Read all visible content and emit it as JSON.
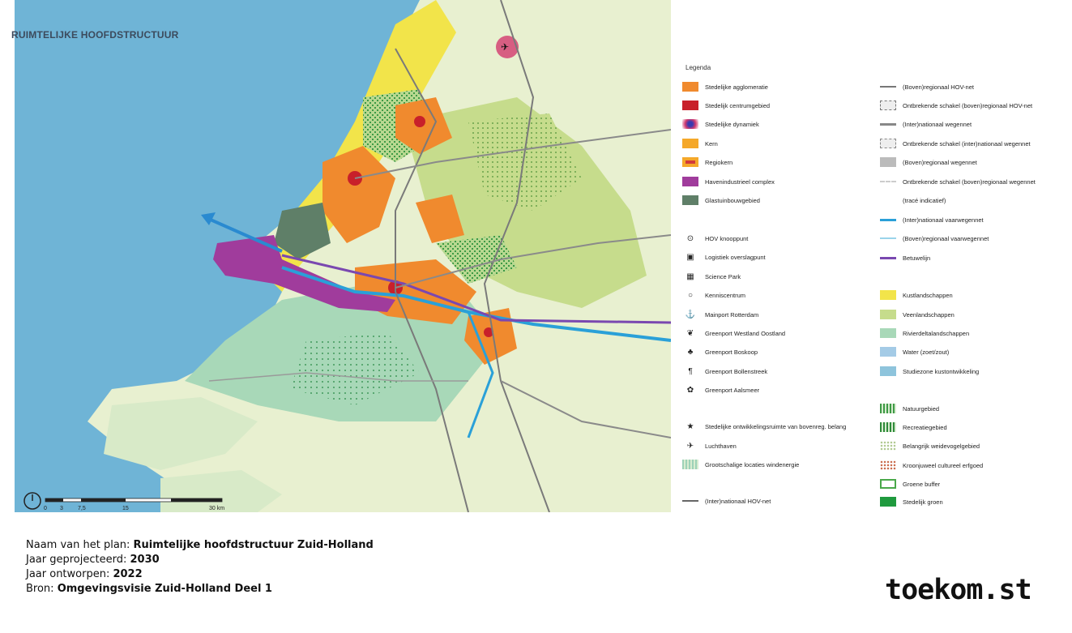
{
  "map": {
    "title": "RUIMTELIJKE HOOFDSTRUCTUUR",
    "scale_labels": [
      "0",
      "3",
      "7,5",
      "15",
      "30 km"
    ],
    "colors": {
      "sea": "#6fb4d6",
      "land": "#e8f0d0",
      "agglomeration": "#f08a2e",
      "veen": "#c6dc8c",
      "rivierdelta": "#a8d8b8",
      "kust": "#f2e44a",
      "haven": "#a03c9c",
      "glastuin": "#5f7f68"
    }
  },
  "legend": {
    "title": "Legenda",
    "left": [
      {
        "label": "Stedelijke agglomeratie",
        "color": "#f08a2e",
        "kind": "fill"
      },
      {
        "label": "Stedelijk centrumgebied",
        "color": "#c8202a",
        "kind": "fill"
      },
      {
        "label": "Stedelijke dynamiek",
        "color": "#d23a6e",
        "kind": "radial"
      },
      {
        "label": "Kern",
        "color": "#f5a82a",
        "kind": "fill"
      },
      {
        "label": "Regiokern",
        "color": "#f5a82a",
        "kind": "fill-dot"
      },
      {
        "label": "Havenindustrieel complex",
        "color": "#a03c9c",
        "kind": "fill"
      },
      {
        "label": "Glastuinbouwgebied",
        "color": "#5f7f68",
        "kind": "fill"
      },
      {
        "label": "HOV knooppunt",
        "icon": "hov-knooppunt-icon",
        "glyph": "⊙"
      },
      {
        "label": "Logistiek overslagpunt",
        "icon": "logistiek-icon",
        "glyph": "▣"
      },
      {
        "label": "Science Park",
        "icon": "science-park-icon",
        "glyph": "▦"
      },
      {
        "label": "Kenniscentrum",
        "icon": "kenniscentrum-icon",
        "glyph": "○"
      },
      {
        "label": "Mainport Rotterdam",
        "icon": "mainport-icon",
        "glyph": "⚓"
      },
      {
        "label": "Greenport Westland Oostland",
        "icon": "greenport-westland-icon",
        "glyph": "❦"
      },
      {
        "label": "Greenport Boskoop",
        "icon": "greenport-boskoop-icon",
        "glyph": "♣"
      },
      {
        "label": "Greenport Bollenstreek",
        "icon": "greenport-bollenstreek-icon",
        "glyph": "¶"
      },
      {
        "label": "Greenport Aalsmeer",
        "icon": "greenport-aalsmeer-icon",
        "glyph": "✿"
      },
      {
        "label": "Stedelijke ontwikkelingsruimte van bovenreg. belang",
        "icon": "star-icon",
        "glyph": "★"
      },
      {
        "label": "Luchthaven",
        "icon": "airport-icon",
        "glyph": "✈"
      },
      {
        "label": "Grootschalige locaties windenergie",
        "color": "#9dd2b8",
        "kind": "hatch"
      },
      {
        "label": "(Inter)nationaal HOV-net",
        "color": "#666666",
        "kind": "line"
      }
    ],
    "right": [
      {
        "label": "(Boven)regionaal HOV-net",
        "color": "#777777",
        "kind": "line"
      },
      {
        "label": "Ontbrekende schakel (boven)regionaal HOV-net",
        "color": "#777777",
        "kind": "dash-box"
      },
      {
        "label": "(Inter)nationaal wegennet",
        "color": "#888888",
        "kind": "line-thick"
      },
      {
        "label": "Ontbrekende schakel (inter)nationaal wegennet",
        "color": "#888888",
        "kind": "dash-box"
      },
      {
        "label": "(Boven)regionaal wegennet",
        "color": "#bbbbbb",
        "kind": "box"
      },
      {
        "label": "Ontbrekende schakel (boven)regionaal wegennet",
        "color": "#cccccc",
        "kind": "dash-line"
      },
      {
        "label": "(tracé indicatief)",
        "color": "",
        "kind": "none"
      },
      {
        "label": "(Inter)nationaal vaarwegennet",
        "color": "#2aa0d8",
        "kind": "line-thick"
      },
      {
        "label": "(Boven)regionaal vaarwegennet",
        "color": "#9ad4ea",
        "kind": "line"
      },
      {
        "label": "Betuwelijn",
        "color": "#7a48b0",
        "kind": "line-thick"
      },
      {
        "label": "Kustlandschappen",
        "color": "#f2e44a",
        "kind": "fill"
      },
      {
        "label": "Veenlandschappen",
        "color": "#c6dc8c",
        "kind": "fill"
      },
      {
        "label": "Rivierdeltalandschappen",
        "color": "#a8d8b8",
        "kind": "fill"
      },
      {
        "label": "Water (zoet/zout)",
        "color": "#a4cbe6",
        "kind": "fill"
      },
      {
        "label": "Studiezone kustontwikkeling",
        "color": "#8ec4dc",
        "kind": "fill"
      },
      {
        "label": "Natuurgebied",
        "color": "#3e9a46",
        "kind": "hatch"
      },
      {
        "label": "Recreatiegebied",
        "color": "#2e8a3a",
        "kind": "hatch"
      },
      {
        "label": "Belangrijk weidevogelgebied",
        "color": "#b0c890",
        "kind": "dots"
      },
      {
        "label": "Kroonjuweel cultureel erfgoed",
        "color": "#c86a4a",
        "kind": "dots"
      },
      {
        "label": "Groene buffer",
        "color": "#4aa84a",
        "kind": "outline"
      },
      {
        "label": "Stedelijk groen",
        "color": "#1f9a3e",
        "kind": "fill"
      }
    ]
  },
  "info": {
    "plan_label": "Naam van het plan: ",
    "plan_value": "Ruimtelijke hoofdstructuur Zuid-Holland",
    "projected_label": "Jaar geprojecteerd: ",
    "projected_value": "2030",
    "designed_label": "Jaar ontworpen: ",
    "designed_value": "2022",
    "source_label": "Bron: ",
    "source_value": "Omgevingsvisie Zuid-Holland Deel 1"
  },
  "brand": "toekom.st"
}
